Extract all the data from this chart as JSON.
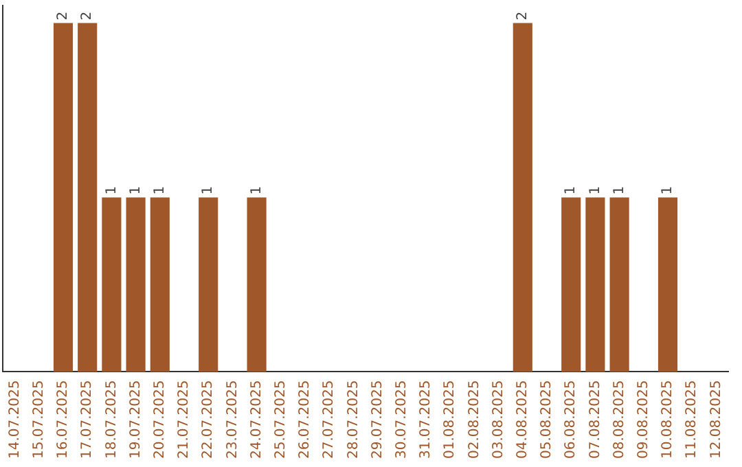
{
  "chart_data": {
    "type": "bar",
    "categories": [
      "14.07.2025",
      "15.07.2025",
      "16.07.2025",
      "17.07.2025",
      "18.07.2025",
      "19.07.2025",
      "20.07.2025",
      "21.07.2025",
      "22.07.2025",
      "23.07.2025",
      "24.07.2025",
      "25.07.2025",
      "26.07.2025",
      "27.07.2025",
      "28.07.2025",
      "29.07.2025",
      "30.07.2025",
      "31.07.2025",
      "01.08.2025",
      "02.08.2025",
      "03.08.2025",
      "04.08.2025",
      "05.08.2025",
      "06.08.2025",
      "07.08.2025",
      "08.08.2025",
      "09.08.2025",
      "10.08.2025",
      "11.08.2025",
      "12.08.2025"
    ],
    "values": [
      0,
      0,
      2,
      2,
      1,
      1,
      1,
      0,
      1,
      0,
      1,
      0,
      0,
      0,
      0,
      0,
      0,
      0,
      0,
      0,
      0,
      2,
      0,
      1,
      1,
      1,
      0,
      1,
      0,
      0
    ],
    "value_labels": [
      null,
      null,
      "2",
      "2",
      "1",
      "1",
      "1",
      null,
      "1",
      null,
      "1",
      null,
      null,
      null,
      null,
      null,
      null,
      null,
      null,
      null,
      null,
      "2",
      null,
      "1",
      "1",
      "1",
      null,
      "1",
      null,
      null
    ],
    "color": "#a0582a",
    "ylim": [
      0,
      2.1
    ],
    "tick_labels": "x",
    "grid": false,
    "legend": false
  }
}
